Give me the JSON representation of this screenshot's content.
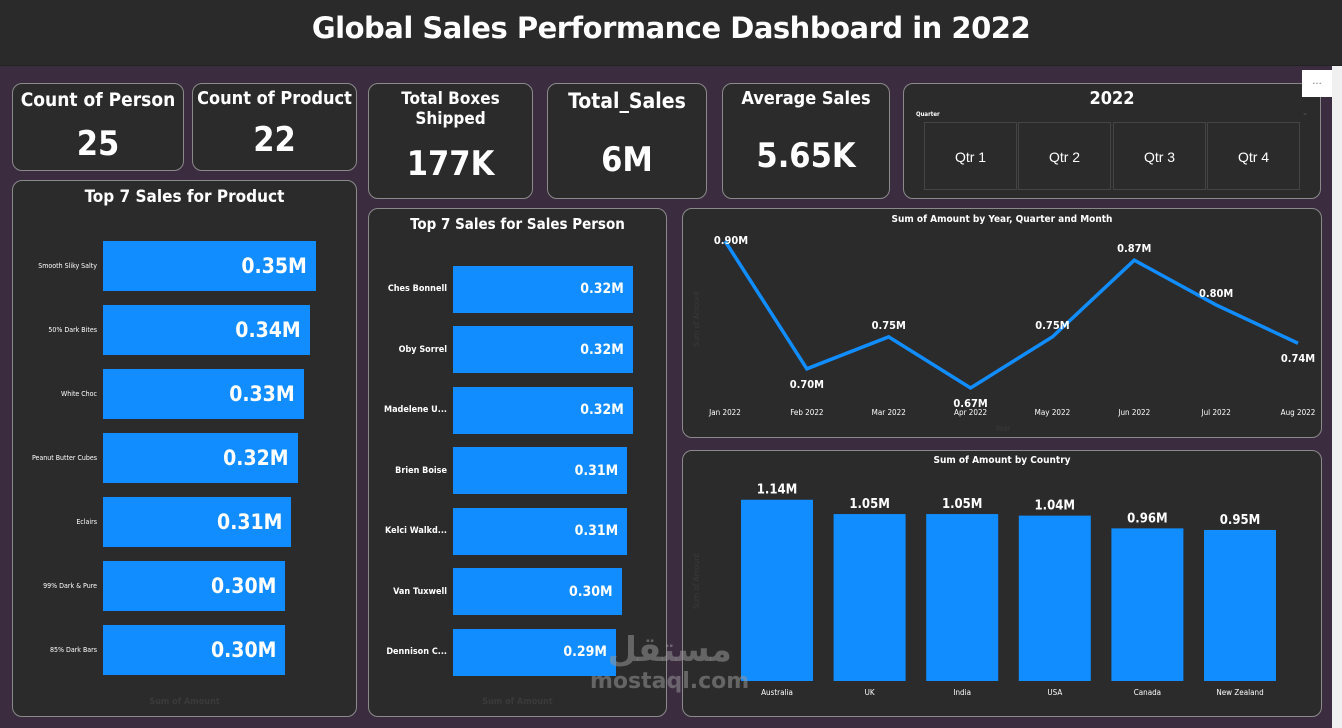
{
  "header": {
    "title": "Global Sales Performance Dashboard  in 2022"
  },
  "kpis": {
    "count_person": {
      "label": "Count of Person",
      "value": "25"
    },
    "count_product": {
      "label": "Count of Product",
      "value": "22"
    },
    "total_boxes": {
      "label": "Total Boxes Shipped",
      "value": "177K"
    },
    "total_sales": {
      "label": "Total_Sales",
      "value": "6M"
    },
    "avg_sales": {
      "label": "Average Sales",
      "value": "5.65K"
    }
  },
  "slicer": {
    "title": "2022",
    "field": "Quarter",
    "options": [
      "Qtr 1",
      "Qtr 2",
      "Qtr 3",
      "Qtr 4"
    ],
    "more_label": "···"
  },
  "colors": {
    "bar": "#118dff",
    "card": "#2b2b2b",
    "background": "#3b2c40"
  },
  "watermark": {
    "logo_text": "مستقل",
    "text": "mostaql.com"
  },
  "chart_data": [
    {
      "type": "bar",
      "orientation": "horizontal",
      "title": "Top 7 Sales for Product",
      "xlabel": "Sum of Amount",
      "categories": [
        "Smooth Sliky Salty",
        "50% Dark Bites",
        "White Choc",
        "Peanut Butter Cubes",
        "Eclairs",
        "99% Dark & Pure",
        "85% Dark Bars"
      ],
      "values": [
        0.35,
        0.34,
        0.33,
        0.32,
        0.31,
        0.3,
        0.3
      ],
      "labels": [
        "0.35M",
        "0.34M",
        "0.33M",
        "0.32M",
        "0.31M",
        "0.30M",
        "0.30M"
      ]
    },
    {
      "type": "bar",
      "orientation": "horizontal",
      "title": "Top 7 Sales for Sales Person",
      "xlabel": "Sum of Amount",
      "categories": [
        "Ches Bonnell",
        "Oby Sorrel",
        "Madelene U...",
        "Brien Boise",
        "Kelci Walkd...",
        "Van Tuxwell",
        "Dennison C..."
      ],
      "values": [
        0.32,
        0.32,
        0.32,
        0.31,
        0.31,
        0.3,
        0.29
      ],
      "labels": [
        "0.32M",
        "0.32M",
        "0.32M",
        "0.31M",
        "0.31M",
        "0.30M",
        "0.29M"
      ]
    },
    {
      "type": "line",
      "title": "Sum of Amount by Year, Quarter and Month",
      "xlabel": "Year",
      "ylabel": "Sum of Amount",
      "categories": [
        "Jan 2022",
        "Feb 2022",
        "Mar 2022",
        "Apr 2022",
        "May 2022",
        "Jun 2022",
        "Jul 2022",
        "Aug 2022"
      ],
      "values": [
        0.9,
        0.7,
        0.75,
        0.67,
        0.75,
        0.87,
        0.8,
        0.74
      ],
      "labels": [
        "0.90M",
        "0.70M",
        "0.75M",
        "0.67M",
        "0.75M",
        "0.87M",
        "0.80M",
        "0.74M"
      ]
    },
    {
      "type": "bar",
      "title": "Sum of Amount by Country",
      "ylabel": "Sum of Amount",
      "categories": [
        "Australia",
        "UK",
        "India",
        "USA",
        "Canada",
        "New Zealand"
      ],
      "values": [
        1.14,
        1.05,
        1.05,
        1.04,
        0.96,
        0.95
      ],
      "labels": [
        "1.14M",
        "1.05M",
        "1.05M",
        "1.04M",
        "0.96M",
        "0.95M"
      ]
    }
  ]
}
